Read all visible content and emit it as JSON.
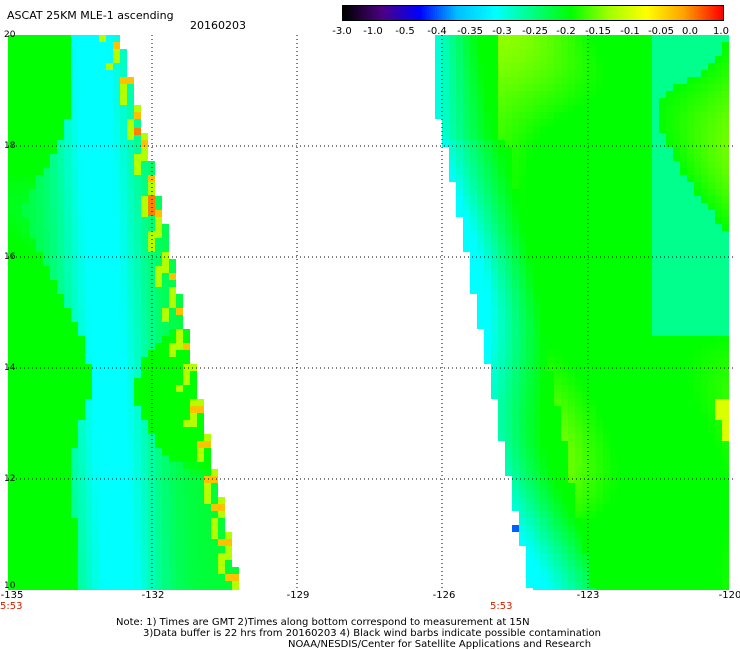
{
  "header": {
    "title": "ASCAT 25KM MLE-1 ascending",
    "date": "20160203"
  },
  "colorbar": {
    "labels": [
      "-3.0",
      "-1.0",
      "-0.5",
      "-0.4",
      "-0.35",
      "-0.3",
      "-0.25",
      "-0.2",
      "-0.15",
      "-0.1",
      "-0.05",
      "0.0",
      "1.0"
    ],
    "colors": [
      "#000000",
      "#4b0082",
      "#0000ff",
      "#00c0ff",
      "#00ffff",
      "#00ff80",
      "#00ff00",
      "#a0ff00",
      "#ffff00",
      "#ffa000",
      "#ff0000"
    ]
  },
  "map": {
    "lon_range": [
      -135,
      -120
    ],
    "lat_range": [
      10,
      20
    ],
    "x_ticks": [
      "-135",
      "-132",
      "-129",
      "-126",
      "-123",
      "-120"
    ],
    "y_ticks": [
      "20",
      "18",
      "16",
      "14",
      "12",
      "10"
    ],
    "gridlines": true,
    "swath_times": [
      "5:53",
      "5:53"
    ],
    "swath_colors": {
      "low": "#00ffff",
      "mid": "#00ff00",
      "high": "#ffff00",
      "peak": "#ff8000",
      "outlier": "#0060ff"
    }
  },
  "notes": [
    "Note: 1) Times are GMT 2)Times along bottom correspond to measurement at 15N",
    "3)Data buffer is 22 hrs from 20160203 4) Black wind barbs indicate possible contamination",
    "NOAA/NESDIS/Center for Satellite Applications and Research"
  ]
}
